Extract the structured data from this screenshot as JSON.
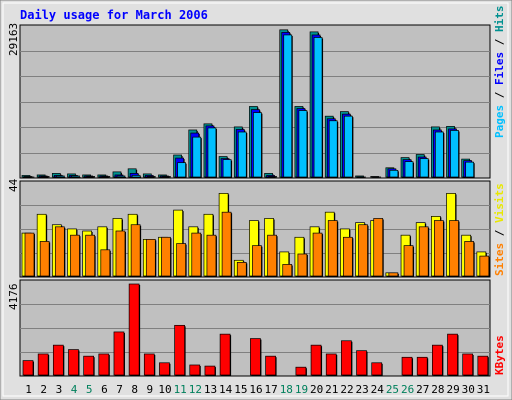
{
  "chart_data": [
    {
      "type": "bar",
      "title": "Daily usage for March 2006",
      "ylabel_parts": [
        "Pages",
        "Files",
        "Hits"
      ],
      "ymax_label": "29163",
      "ylim": [
        0,
        29163
      ],
      "categories": [
        "1",
        "2",
        "3",
        "4",
        "5",
        "6",
        "7",
        "8",
        "9",
        "10",
        "11",
        "12",
        "13",
        "14",
        "15",
        "16",
        "17",
        "18",
        "19",
        "20",
        "21",
        "22",
        "23",
        "24",
        "25",
        "26",
        "27",
        "28",
        "29",
        "30",
        "31"
      ],
      "weekend_days": [
        "4",
        "5",
        "11",
        "12",
        "18",
        "19",
        "25",
        "26"
      ],
      "series": [
        {
          "name": "Hits",
          "color": "#009090",
          "values": [
            500,
            600,
            900,
            800,
            600,
            600,
            1200,
            1800,
            800,
            600,
            4500,
            9400,
            10600,
            4200,
            10000,
            14000,
            900,
            29000,
            14000,
            28600,
            12100,
            13000,
            400,
            300,
            2000,
            4000,
            4600,
            10000,
            10100,
            3700,
            0
          ]
        },
        {
          "name": "Files",
          "color": "#0000ff",
          "values": [
            300,
            400,
            500,
            500,
            400,
            400,
            600,
            900,
            500,
            400,
            3900,
            8800,
            10200,
            3800,
            9500,
            13400,
            500,
            28500,
            13600,
            28000,
            11600,
            12500,
            200,
            200,
            1800,
            3600,
            4100,
            9400,
            9600,
            3400,
            0
          ]
        },
        {
          "name": "Pages",
          "color": "#00c0ff",
          "values": [
            200,
            300,
            400,
            400,
            300,
            300,
            400,
            500,
            300,
            300,
            3000,
            8000,
            9800,
            3600,
            9000,
            12800,
            300,
            28000,
            13200,
            27500,
            11200,
            12100,
            150,
            150,
            1500,
            3200,
            3800,
            9000,
            9300,
            3100,
            0
          ]
        }
      ]
    },
    {
      "type": "bar",
      "ylabel_parts": [
        "Sites",
        "Visits"
      ],
      "ymax_label": "44",
      "ylim": [
        0,
        44
      ],
      "categories": [
        "1",
        "2",
        "3",
        "4",
        "5",
        "6",
        "7",
        "8",
        "9",
        "10",
        "11",
        "12",
        "13",
        "14",
        "15",
        "16",
        "17",
        "18",
        "19",
        "20",
        "21",
        "22",
        "23",
        "24",
        "25",
        "26",
        "27",
        "28",
        "29",
        "30",
        "31"
      ],
      "series": [
        {
          "name": "Visits",
          "color": "#ffff00",
          "values": [
            21,
            30,
            25,
            23,
            22,
            24,
            28,
            30,
            18,
            19,
            32,
            24,
            30,
            40,
            8,
            27,
            28,
            12,
            19,
            24,
            31,
            23,
            26,
            27,
            2,
            20,
            26,
            29,
            40,
            20,
            12
          ]
        },
        {
          "name": "Sites",
          "color": "#ff8000",
          "values": [
            21,
            17,
            24,
            20,
            20,
            13,
            22,
            25,
            18,
            19,
            16,
            21,
            20,
            31,
            7,
            15,
            20,
            6,
            11,
            21,
            27,
            19,
            25,
            28,
            2,
            15,
            24,
            27,
            27,
            17,
            10
          ]
        }
      ]
    },
    {
      "type": "bar",
      "ylabel_parts": [
        "KBytes"
      ],
      "ymax_label": "4176",
      "ylim": [
        0,
        4176
      ],
      "categories": [
        "1",
        "2",
        "3",
        "4",
        "5",
        "6",
        "7",
        "8",
        "9",
        "10",
        "11",
        "12",
        "13",
        "14",
        "15",
        "16",
        "17",
        "18",
        "19",
        "20",
        "21",
        "22",
        "23",
        "24",
        "25",
        "26",
        "27",
        "28",
        "29",
        "30",
        "31"
      ],
      "series": [
        {
          "name": "KBytes",
          "color": "#ff0000",
          "values": [
            700,
            1000,
            1400,
            1200,
            900,
            1000,
            2000,
            4176,
            1000,
            600,
            2300,
            500,
            450,
            1900,
            20,
            1700,
            900,
            20,
            400,
            1400,
            1000,
            1600,
            1150,
            600,
            20,
            850,
            850,
            1400,
            1900,
            1000,
            900
          ]
        }
      ]
    }
  ],
  "colors": {
    "background": "#c0c0c0",
    "frame": "#e0e0e0",
    "title": "#0000ff",
    "weekday_label": "#000000",
    "weekend_label": "#00805c"
  }
}
